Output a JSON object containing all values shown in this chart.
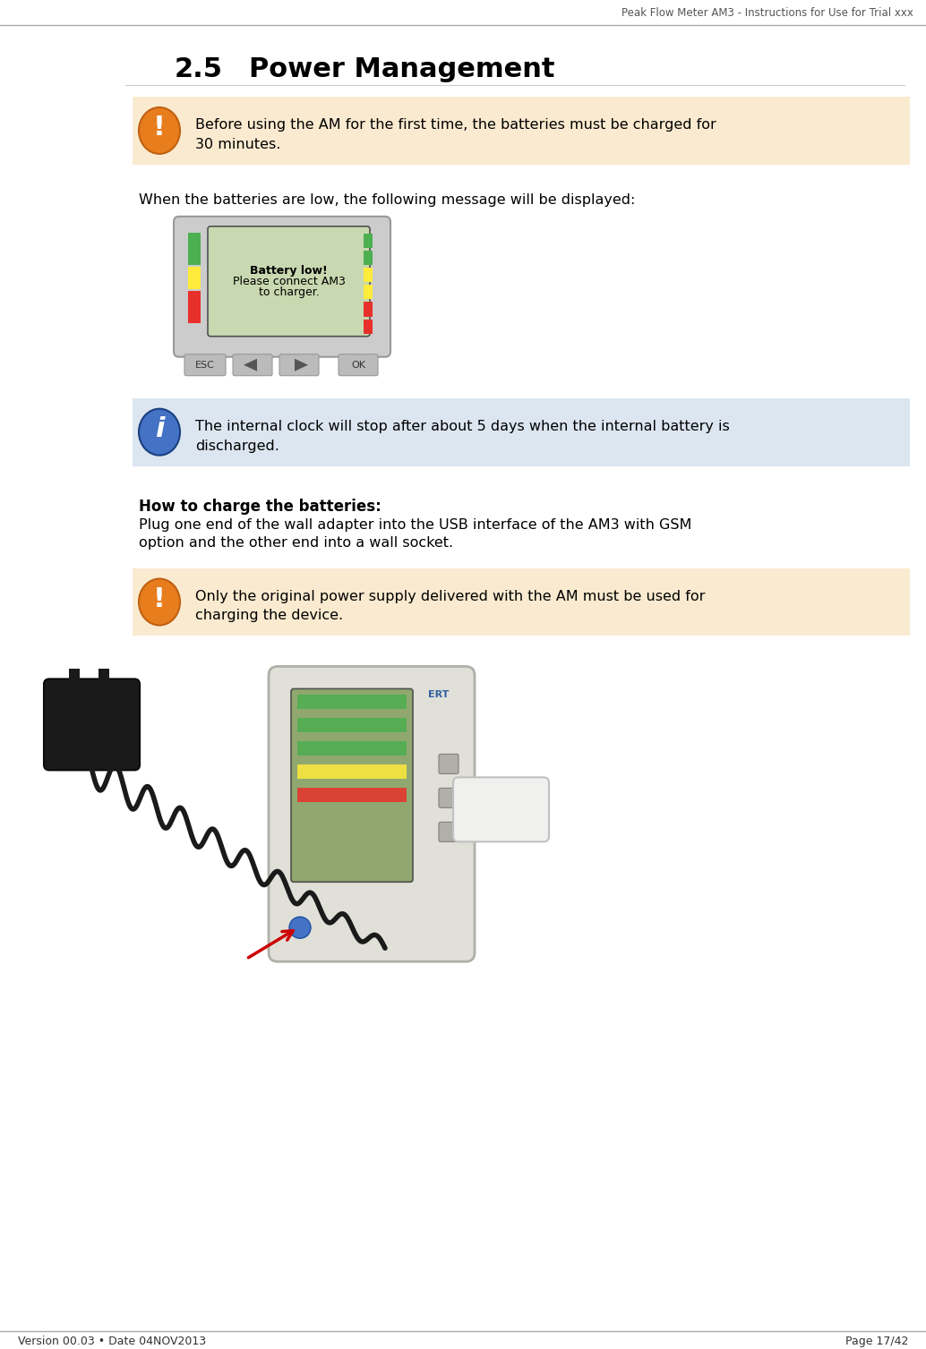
{
  "page_title": "Peak Flow Meter AM3 - Instructions for Use for Trial xxx",
  "section_number": "2.5",
  "section_title": "Power Management",
  "footer_left": "Version 00.03 • Date 04NOV2013",
  "footer_right": "Page 17/42",
  "warning_bg_orange": "#FAEBD0",
  "warning_bg_blue": "#DCE6F1",
  "warning_icon_orange": "#E87D1E",
  "warning_icon_blue": "#4472C4",
  "text_color": "#000000",
  "line_color": "#AAAAAA",
  "box1_text_line1": "Before using the AM for the first time, the batteries must be charged for",
  "box1_text_line2": "30 minutes.",
  "box2_text_line1": "The internal clock will stop after about 5 days when the internal battery is",
  "box2_text_line2": "discharged.",
  "box3_text_line1": "Only the original power supply delivered with the AM must be used for",
  "box3_text_line2": "charging the device.",
  "intro_text": "When the batteries are low, the following message will be displayed:",
  "how_to_charge_bold": "How to charge the batteries:",
  "how_to_charge_line1": "Plug one end of the wall adapter into the USB interface of the AM3 with GSM",
  "how_to_charge_line2": "option and the other end into a wall socket.",
  "battery_msg_line1": "Battery low!",
  "battery_msg_line2": "Please connect AM3",
  "battery_msg_line3": "to charger.",
  "esc_label": "ESC",
  "ok_label": "OK",
  "bg_color": "#FFFFFF",
  "device_gray": "#D0D0D0",
  "screen_green": "#C8D8B0",
  "green_bar": "#4CAF50",
  "yellow_bar": "#FFEB3B",
  "red_bar": "#E8302A"
}
